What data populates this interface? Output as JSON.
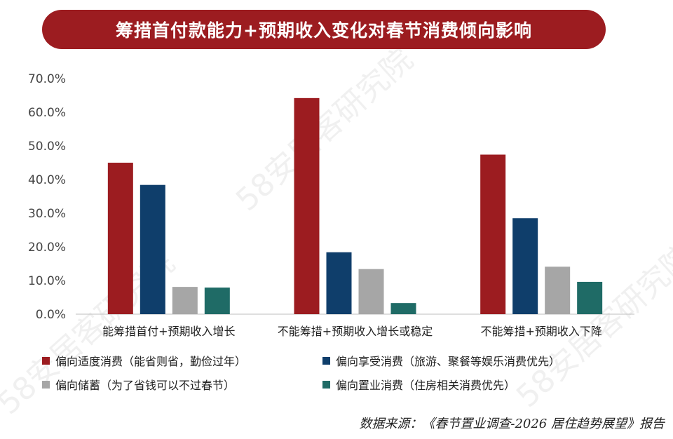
{
  "title": "筹措首付款能力+预期收入变化对春节消费倾向影响",
  "watermark_text": "58安居客研究院",
  "source": "数据来源：《春节置业调查-2026 居住趋势展望》报告",
  "chart_data": {
    "type": "bar",
    "title": "筹措首付款能力+预期收入变化对春节消费倾向影响",
    "categories": [
      "能筹措首付+预期收入增长",
      "不能筹措+预期收入增长或稳定",
      "不能筹措+预期收入下降"
    ],
    "series": [
      {
        "name": "偏向适度消费（能省则省，勤俭过年）",
        "color": "#9c1c20",
        "values": [
          45.0,
          64.2,
          47.4
        ]
      },
      {
        "name": "偏向享受消费（旅游、聚餐等娱乐消费优先）",
        "color": "#0f3e6b",
        "values": [
          38.4,
          18.4,
          28.5
        ]
      },
      {
        "name": "偏向储蓄（为了省钱可以不过春节）",
        "color": "#a6a6a6",
        "values": [
          8.1,
          13.4,
          14.1
        ]
      },
      {
        "name": "偏向置业消费（住房相关消费优先）",
        "color": "#1f6b66",
        "values": [
          7.9,
          3.3,
          9.6
        ]
      }
    ],
    "ylim": [
      0,
      70
    ],
    "yticks": [
      "0.0%",
      "10.0%",
      "20.0%",
      "30.0%",
      "40.0%",
      "50.0%",
      "60.0%",
      "70.0%"
    ],
    "xlabel": "",
    "ylabel": "",
    "grid": false,
    "legend": "bottom"
  }
}
